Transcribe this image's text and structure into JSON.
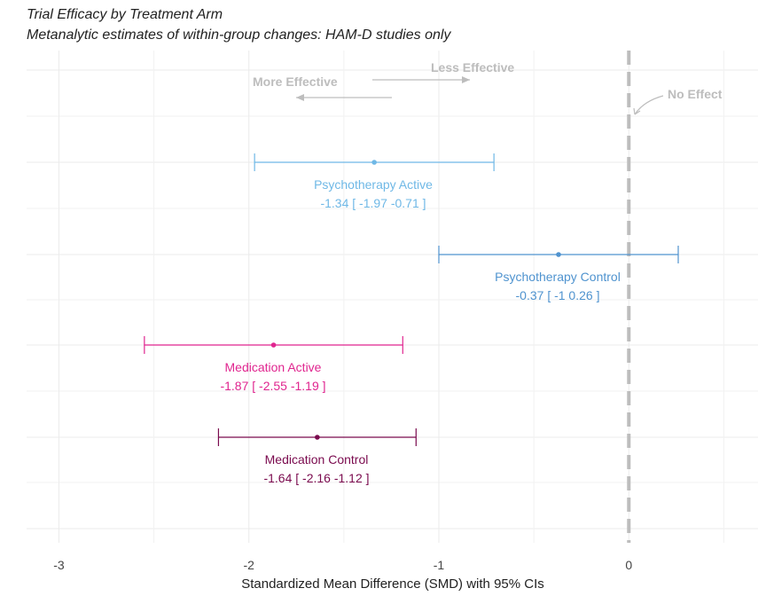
{
  "chart_data": {
    "type": "forest",
    "title": "Trial Efficacy by Treatment Arm",
    "subtitle": "Metanalytic estimates of within-group changes: HAM-D studies only",
    "xlabel": "Standardized Mean Difference (SMD) with 95% CIs",
    "xlim": [
      -3.17,
      0.68
    ],
    "xticks": [
      -3,
      -2,
      -1,
      0
    ],
    "xtick_labels": [
      "-3",
      "-2",
      "-1",
      "0"
    ],
    "reference_line": {
      "x": 0,
      "label": "No Effect"
    },
    "annotations": {
      "more": "More Effective",
      "less": "Less Effective"
    },
    "grid": true,
    "series": [
      {
        "name": "Psychotherapy Active",
        "estimate": -1.34,
        "lower": -1.97,
        "upper": -0.71,
        "ci_text": "-1.34 [ -1.97 -0.71 ]",
        "color": "#6fb8e6"
      },
      {
        "name": "Psychotherapy Control",
        "estimate": -0.37,
        "lower": -1.0,
        "upper": 0.26,
        "ci_text": "-0.37 [ -1 0.26 ]",
        "color": "#4f93cf"
      },
      {
        "name": "Medication Active",
        "estimate": -1.87,
        "lower": -2.55,
        "upper": -1.19,
        "ci_text": "-1.87 [ -2.55 -1.19 ]",
        "color": "#e0258f"
      },
      {
        "name": "Medication Control",
        "estimate": -1.64,
        "lower": -2.16,
        "upper": -1.12,
        "ci_text": "-1.64 [ -2.16 -1.12 ]",
        "color": "#7a0a4e"
      }
    ]
  }
}
